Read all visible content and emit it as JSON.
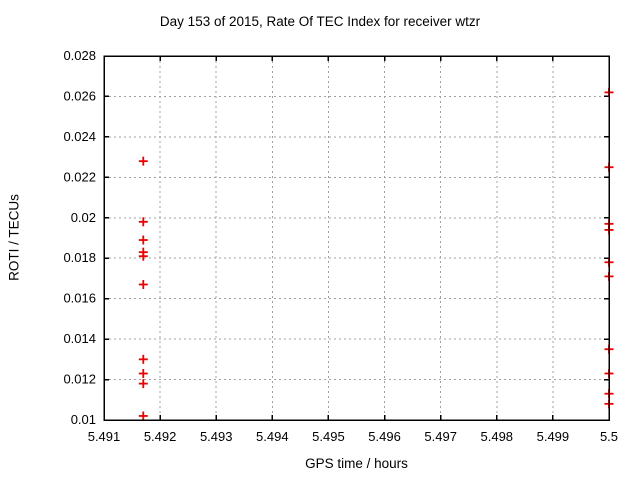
{
  "chart_data": {
    "type": "scatter",
    "title": "Day 153 of 2015, Rate Of TEC Index for receiver wtzr",
    "xlabel": "GPS time / hours",
    "ylabel": "ROTI / TECUs",
    "xlim": [
      5.491,
      5.5
    ],
    "ylim": [
      0.01,
      0.028
    ],
    "x_ticks": [
      5.491,
      5.492,
      5.493,
      5.494,
      5.495,
      5.496,
      5.497,
      5.498,
      5.499,
      5.5
    ],
    "x_tick_labels": [
      "5.491",
      "5.492",
      "5.493",
      "5.494",
      "5.495",
      "5.496",
      "5.497",
      "5.498",
      "5.499",
      "5.5"
    ],
    "y_ticks": [
      0.01,
      0.012,
      0.014,
      0.016,
      0.018,
      0.02,
      0.022,
      0.024,
      0.026,
      0.028
    ],
    "y_tick_labels": [
      "0.01",
      "0.012",
      "0.014",
      "0.016",
      "0.018",
      "0.02",
      "0.022",
      "0.024",
      "0.026",
      "0.028"
    ],
    "grid": true,
    "legend": "none",
    "marker": "plus",
    "series": [
      {
        "name": "ROTI",
        "color": "#ee0000",
        "points": [
          {
            "x": 5.4917,
            "y": 0.0228
          },
          {
            "x": 5.4917,
            "y": 0.0198
          },
          {
            "x": 5.4917,
            "y": 0.0189
          },
          {
            "x": 5.4917,
            "y": 0.0183
          },
          {
            "x": 5.4917,
            "y": 0.0181
          },
          {
            "x": 5.4917,
            "y": 0.0167
          },
          {
            "x": 5.4917,
            "y": 0.013
          },
          {
            "x": 5.4917,
            "y": 0.0123
          },
          {
            "x": 5.4917,
            "y": 0.0118
          },
          {
            "x": 5.4917,
            "y": 0.0102
          },
          {
            "x": 5.5,
            "y": 0.0262
          },
          {
            "x": 5.5,
            "y": 0.0225
          },
          {
            "x": 5.5,
            "y": 0.0197
          },
          {
            "x": 5.5,
            "y": 0.0194
          },
          {
            "x": 5.5,
            "y": 0.0178
          },
          {
            "x": 5.5,
            "y": 0.0171
          },
          {
            "x": 5.5,
            "y": 0.0135
          },
          {
            "x": 5.5,
            "y": 0.0123
          },
          {
            "x": 5.5,
            "y": 0.0113
          },
          {
            "x": 5.5,
            "y": 0.0108
          }
        ]
      }
    ],
    "colors": {
      "points": "#ee0000",
      "grid": "#a0a0a0",
      "axis": "#000000",
      "background": "#ffffff",
      "text": "#000000"
    }
  }
}
